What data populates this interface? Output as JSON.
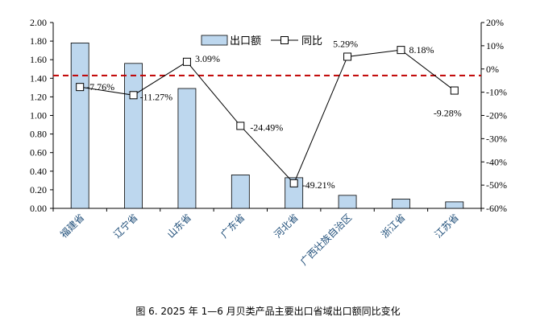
{
  "chart_data": {
    "type": "bar+line",
    "title": "",
    "caption": "图 6. 2025 年 1—6 月贝类产品主要出口省域出口额同比变化",
    "categories": [
      "福建省",
      "辽宁省",
      "山东省",
      "广东省",
      "河北省",
      "广西壮族自治区",
      "浙江省",
      "江苏省"
    ],
    "series": [
      {
        "name": "出口额",
        "type": "bar",
        "axis": "left",
        "values": [
          1.78,
          1.56,
          1.29,
          0.36,
          0.33,
          0.14,
          0.1,
          0.07
        ],
        "color": "#bdd7ee"
      },
      {
        "name": "同比",
        "type": "line",
        "axis": "right",
        "values": [
          -7.76,
          -11.27,
          3.09,
          -24.49,
          -49.21,
          5.29,
          8.18,
          -9.28
        ],
        "labels": [
          "-7.76%",
          "-11.27%",
          "3.09%",
          "-24.49%",
          "-49.21%",
          "5.29%",
          "8.18%",
          "-9.28%"
        ],
        "color": "#000000"
      }
    ],
    "reference_line": {
      "axis": "left",
      "value": 1.43,
      "color": "#c00000",
      "style": "dashed"
    },
    "left_axis": {
      "ylim": [
        0,
        2
      ],
      "ticks": [
        "0.00",
        "0.20",
        "0.40",
        "0.60",
        "0.80",
        "1.00",
        "1.20",
        "1.40",
        "1.60",
        "1.80",
        "2.00"
      ]
    },
    "right_axis": {
      "ylim": [
        -60,
        20
      ],
      "ticks": [
        "-60%",
        "-50%",
        "-40%",
        "-30%",
        "-20%",
        "-10%",
        "0%",
        "10%",
        "20%"
      ]
    },
    "category_label_color": "#1f4e79",
    "legend": "top-center",
    "grid": false
  }
}
